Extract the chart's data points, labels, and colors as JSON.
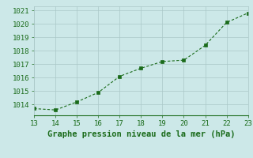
{
  "x": [
    13,
    14,
    15,
    16,
    17,
    18,
    19,
    20,
    21,
    22,
    23
  ],
  "y": [
    1013.7,
    1013.6,
    1014.2,
    1014.9,
    1016.1,
    1016.7,
    1017.2,
    1017.3,
    1018.4,
    1020.1,
    1020.8
  ],
  "xlim": [
    13,
    23
  ],
  "ylim": [
    1013.2,
    1021.3
  ],
  "xticks": [
    13,
    14,
    15,
    16,
    17,
    18,
    19,
    20,
    21,
    22,
    23
  ],
  "yticks": [
    1014,
    1015,
    1016,
    1017,
    1018,
    1019,
    1020,
    1021
  ],
  "line_color": "#1a6b1a",
  "marker_color": "#1a6b1a",
  "background_color": "#cce8e8",
  "grid_color": "#aac8c8",
  "xlabel": "Graphe pression niveau de la mer (hPa)",
  "xlabel_color": "#1a6b1a",
  "tick_color": "#1a6b1a",
  "tick_fontsize": 6.5,
  "xlabel_fontsize": 7.5
}
